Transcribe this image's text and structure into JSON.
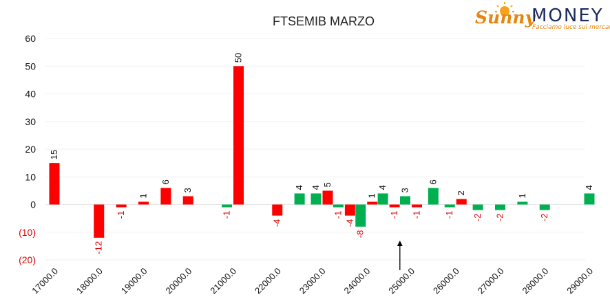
{
  "logo": {
    "brand_word1": "Sunny",
    "brand_word2": "MONEY",
    "tagline": "Facciamo luce sui mercati",
    "brand_color": "#e8850c",
    "navy_color": "#1d2a5c"
  },
  "colors": {
    "positive_red": "#ff0000",
    "positive_green": "#00b050",
    "negative_label": "#e00000",
    "axis_text": "#111111"
  },
  "chart_data": {
    "type": "bar",
    "title": "FTSEMIB MARZO",
    "xlabel": "",
    "ylabel": "",
    "ylim": [
      -20,
      60
    ],
    "grid": true,
    "legend": "none",
    "y_ticks": [
      {
        "value": 60,
        "label": "60"
      },
      {
        "value": 50,
        "label": "50"
      },
      {
        "value": 40,
        "label": "40"
      },
      {
        "value": 30,
        "label": "30"
      },
      {
        "value": 20,
        "label": "20"
      },
      {
        "value": 10,
        "label": "10"
      },
      {
        "value": 0,
        "label": "0"
      },
      {
        "value": -10,
        "label": "(10)"
      },
      {
        "value": -20,
        "label": "(20)"
      }
    ],
    "x_tick_labels": [
      "17000.0",
      "18000.0",
      "19000.0",
      "20000.0",
      "21000.0",
      "22000.0",
      "23000.0",
      "24000.0",
      "25000.0",
      "26000.0",
      "27000.0",
      "28000.0",
      "29000.0"
    ],
    "bars": [
      {
        "strike": 17000,
        "type": "call",
        "value": 15,
        "label": "15"
      },
      {
        "strike": 18000,
        "type": "call",
        "value": -12,
        "label": "-12"
      },
      {
        "strike": 18500,
        "type": "call",
        "value": -1,
        "label": "-1"
      },
      {
        "strike": 19000,
        "type": "call",
        "value": 1,
        "label": "1"
      },
      {
        "strike": 19500,
        "type": "call",
        "value": 6,
        "label": "6"
      },
      {
        "strike": 20000,
        "type": "call",
        "value": 3,
        "label": "3"
      },
      {
        "strike": 21000,
        "type": "put",
        "value": -1,
        "label": "-1"
      },
      {
        "strike": 21000,
        "type": "call",
        "value": 50,
        "label": "50"
      },
      {
        "strike": 22000,
        "type": "call",
        "value": -4,
        "label": "-4"
      },
      {
        "strike": 22500,
        "type": "put",
        "value": 4,
        "label": "4"
      },
      {
        "strike": 23000,
        "type": "put",
        "value": 4,
        "label": "4"
      },
      {
        "strike": 23000,
        "type": "call",
        "value": 5,
        "label": "5"
      },
      {
        "strike": 23500,
        "type": "put",
        "value": -1,
        "label": "-1"
      },
      {
        "strike": 23500,
        "type": "call",
        "value": -4,
        "label": "-4"
      },
      {
        "strike": 24000,
        "type": "put",
        "value": -8,
        "label": "-8"
      },
      {
        "strike": 24000,
        "type": "call",
        "value": 1,
        "label": "1"
      },
      {
        "strike": 24500,
        "type": "put",
        "value": 4,
        "label": "4"
      },
      {
        "strike": 24500,
        "type": "call",
        "value": -1,
        "label": "-1"
      },
      {
        "strike": 25000,
        "type": "put",
        "value": 3,
        "label": "3"
      },
      {
        "strike": 25000,
        "type": "call",
        "value": -1,
        "label": "-1"
      },
      {
        "strike": 25500,
        "type": "put",
        "value": 6,
        "label": "6"
      },
      {
        "strike": 26000,
        "type": "put",
        "value": -1,
        "label": "-1"
      },
      {
        "strike": 26000,
        "type": "call",
        "value": 2,
        "label": "2"
      },
      {
        "strike": 26500,
        "type": "put",
        "value": -2,
        "label": "-2"
      },
      {
        "strike": 27000,
        "type": "put",
        "value": -2,
        "label": "-2"
      },
      {
        "strike": 27500,
        "type": "put",
        "value": 1,
        "label": "1"
      },
      {
        "strike": 28000,
        "type": "put",
        "value": -2,
        "label": "-2"
      },
      {
        "strike": 29000,
        "type": "put",
        "value": 4,
        "label": "4"
      }
    ],
    "arrow_marker_strike": 24750
  }
}
